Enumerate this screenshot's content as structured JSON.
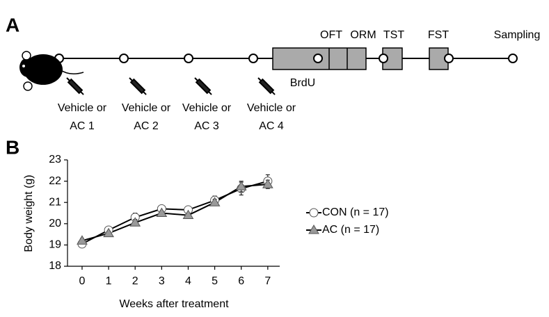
{
  "panel_a": {
    "label": "A",
    "injections": [
      {
        "line1": "Vehicle or",
        "line2": "AC 1"
      },
      {
        "line1": "Vehicle or",
        "line2": "AC 2"
      },
      {
        "line1": "Vehicle or",
        "line2": "AC 3"
      },
      {
        "line1": "Vehicle or",
        "line2": "AC 4"
      }
    ],
    "tests": [
      "OFT",
      "ORM",
      "TST",
      "FST",
      "Sampling"
    ],
    "brdu": "BrdU"
  },
  "panel_b_label": "B",
  "chart_data": {
    "type": "line",
    "x_label": "Weeks after treatment",
    "y_label": "Body weight (g)",
    "x": [
      0,
      1,
      2,
      3,
      4,
      5,
      6,
      7
    ],
    "series": [
      {
        "name": "CON (n = 17)",
        "color": "#ffffff",
        "marker": "circle",
        "values": [
          19.05,
          19.7,
          20.3,
          20.7,
          20.65,
          21.1,
          21.65,
          22.0
        ],
        "errors": [
          0.1,
          0.1,
          0.2,
          0.1,
          0.1,
          0.2,
          0.3,
          0.3
        ]
      },
      {
        "name": "AC (n = 17)",
        "color": "#999999",
        "marker": "triangle",
        "values": [
          19.2,
          19.55,
          20.05,
          20.5,
          20.4,
          21.0,
          21.75,
          21.85
        ],
        "errors": [
          0.1,
          0.1,
          0.15,
          0.1,
          0.1,
          0.15,
          0.25,
          0.2
        ]
      }
    ],
    "xlim": [
      -0.55,
      7.45
    ],
    "xticks": [
      0,
      1,
      2,
      3,
      4,
      5,
      6,
      7
    ],
    "ylim": [
      18,
      23
    ],
    "yticks": [
      18,
      19,
      20,
      21,
      22,
      23
    ],
    "grid": false
  }
}
